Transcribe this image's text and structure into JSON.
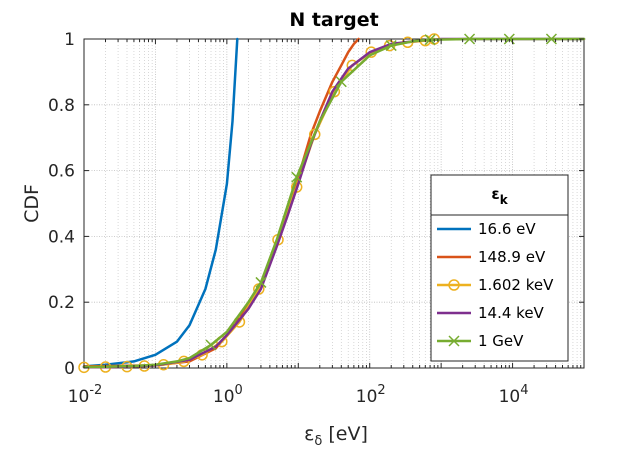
{
  "chart_data": {
    "type": "line",
    "title": "N target",
    "xlabel": "ε",
    "xlabel_sub": "δ",
    "xlabel_unit": " [eV]",
    "ylabel": "CDF",
    "xscale": "log",
    "xlim": [
      0.01,
      100000
    ],
    "ylim": [
      0,
      1
    ],
    "grid": true,
    "x_ticks": [
      {
        "base": "10",
        "exp": "-2"
      },
      {
        "base": "10",
        "exp": "0"
      },
      {
        "base": "10",
        "exp": "2"
      },
      {
        "base": "10",
        "exp": "4"
      }
    ],
    "y_ticks": [
      "0",
      "0.2",
      "0.4",
      "0.6",
      "0.8",
      "1"
    ],
    "legend": {
      "title": "ε",
      "title_sub": "k",
      "placement": "lower-right"
    },
    "series": [
      {
        "name": "16.6 eV",
        "color": "#0072BD",
        "marker": "none",
        "x": [
          0.01,
          0.02,
          0.05,
          0.1,
          0.2,
          0.3,
          0.5,
          0.7,
          1.0,
          1.2,
          1.4
        ],
        "y": [
          0.005,
          0.01,
          0.02,
          0.04,
          0.08,
          0.13,
          0.24,
          0.36,
          0.56,
          0.75,
          1.0
        ]
      },
      {
        "name": "148.9 eV",
        "color": "#D95319",
        "marker": "none",
        "x": [
          0.01,
          0.1,
          0.3,
          0.7,
          1,
          2,
          3,
          5,
          7,
          10,
          15,
          20,
          30,
          40,
          50,
          60,
          70
        ],
        "y": [
          0.005,
          0.008,
          0.02,
          0.06,
          0.1,
          0.19,
          0.25,
          0.38,
          0.47,
          0.58,
          0.71,
          0.78,
          0.87,
          0.92,
          0.96,
          0.985,
          1.0
        ]
      },
      {
        "name": "1.602 keV",
        "color": "#EDB120",
        "marker": "o",
        "x": [
          0.01,
          0.02,
          0.04,
          0.07,
          0.13,
          0.25,
          0.45,
          0.85,
          1.5,
          2.8,
          5.2,
          9.5,
          17,
          32,
          57,
          105,
          190,
          340,
          600,
          800
        ],
        "y": [
          0.002,
          0.003,
          0.004,
          0.006,
          0.01,
          0.02,
          0.04,
          0.08,
          0.14,
          0.24,
          0.39,
          0.55,
          0.71,
          0.84,
          0.92,
          0.96,
          0.98,
          0.99,
          0.995,
          1.0
        ]
      },
      {
        "name": "14.4 keV",
        "color": "#7E2F8E",
        "marker": "none",
        "x": [
          0.01,
          0.03,
          0.1,
          0.3,
          0.7,
          1,
          2,
          3,
          5,
          7,
          10,
          15,
          20,
          30,
          50,
          100,
          200,
          500,
          1000,
          100000
        ],
        "y": [
          0.002,
          0.003,
          0.008,
          0.025,
          0.065,
          0.1,
          0.18,
          0.24,
          0.37,
          0.46,
          0.56,
          0.68,
          0.75,
          0.84,
          0.91,
          0.96,
          0.985,
          0.995,
          1.0,
          1.0
        ]
      },
      {
        "name": "1 GeV",
        "color": "#77AC30",
        "marker": "x",
        "x": [
          0.01,
          0.02,
          0.05,
          0.1,
          0.2,
          0.3,
          0.6,
          1,
          2,
          3,
          5,
          9.5,
          20,
          40,
          100,
          200,
          400,
          700,
          2500,
          9000,
          35000,
          100000
        ],
        "y": [
          0.003,
          0.004,
          0.006,
          0.01,
          0.02,
          0.03,
          0.07,
          0.11,
          0.2,
          0.26,
          0.39,
          0.58,
          0.75,
          0.87,
          0.95,
          0.98,
          0.993,
          0.998,
          1.0,
          1.0,
          1.0,
          1.0
        ],
        "marker_x": [
          0.6,
          3,
          9.5,
          40,
          200,
          700,
          2500,
          9000,
          35000
        ]
      }
    ]
  }
}
